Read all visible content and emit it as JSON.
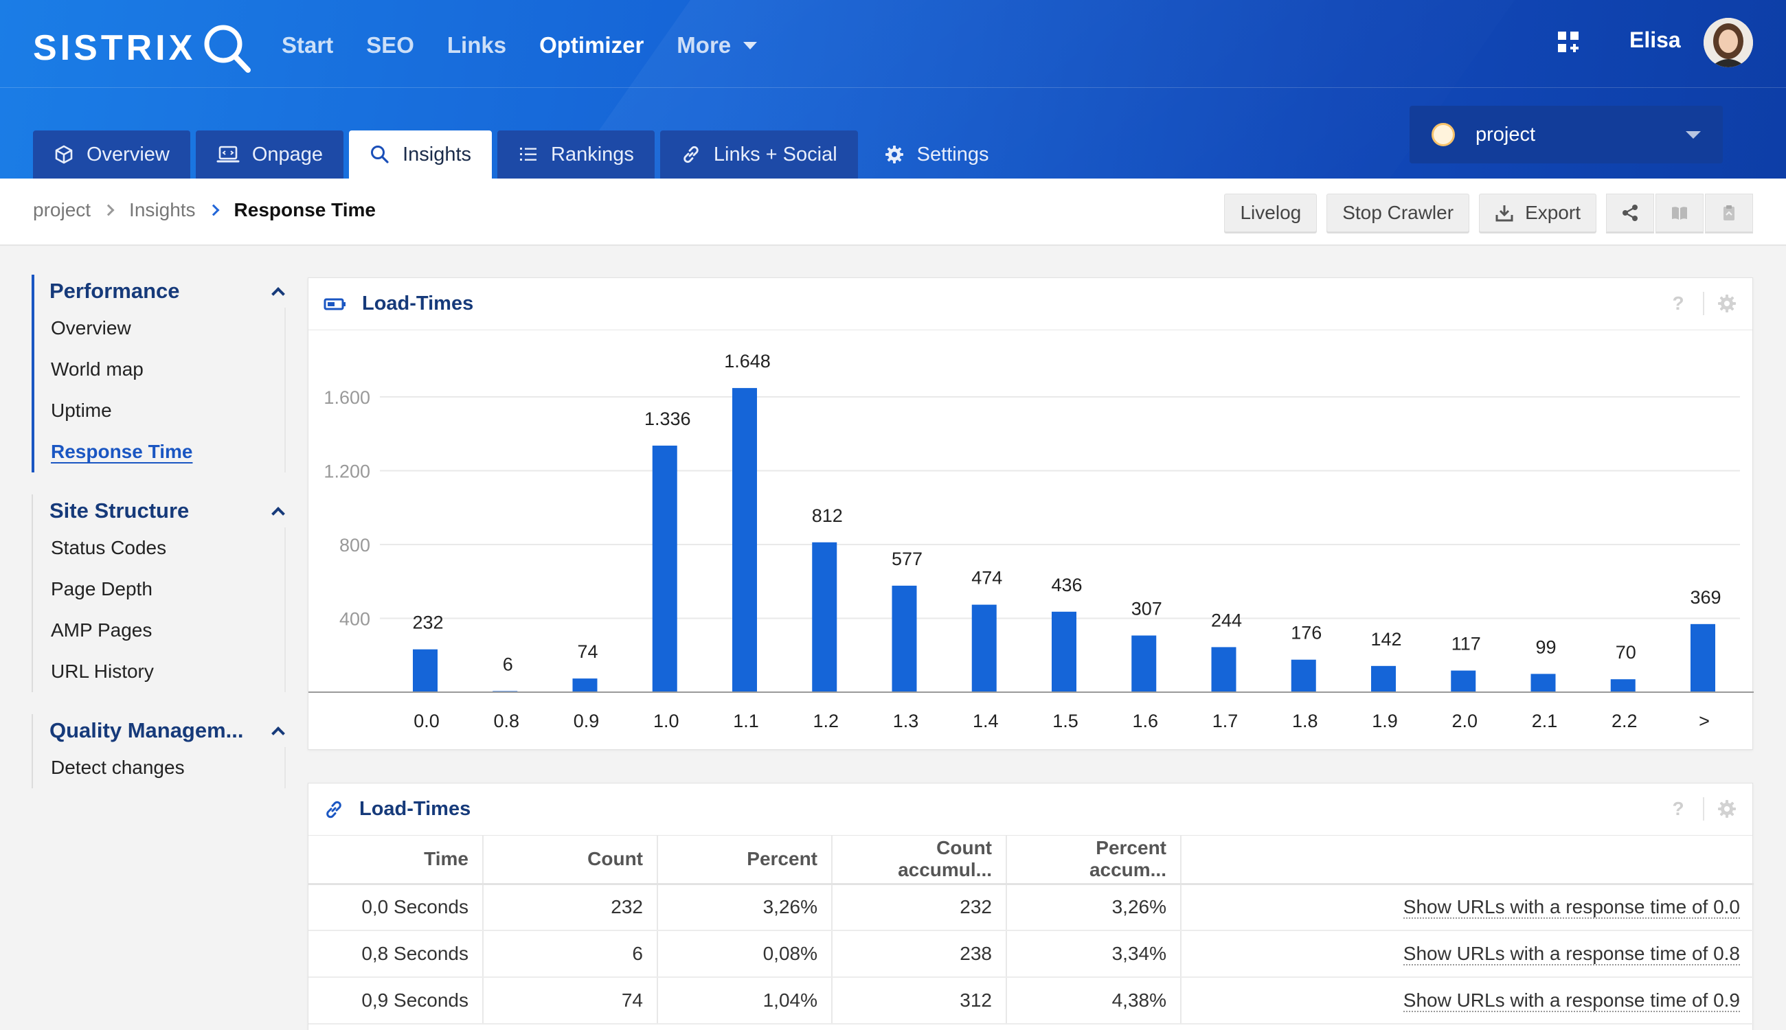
{
  "brand": {
    "logo_text": "SISTRIX"
  },
  "topnav": {
    "items": [
      {
        "label": "Start"
      },
      {
        "label": "SEO"
      },
      {
        "label": "Links"
      },
      {
        "label": "Optimizer",
        "active": true
      },
      {
        "label": "More"
      }
    ]
  },
  "user": {
    "name": "Elisa"
  },
  "tabs": [
    {
      "label": "Overview",
      "icon": "cube-icon"
    },
    {
      "label": "Onpage",
      "icon": "laptop-code-icon"
    },
    {
      "label": "Insights",
      "icon": "search-icon",
      "active": true
    },
    {
      "label": "Rankings",
      "icon": "list-icon"
    },
    {
      "label": "Links + Social",
      "icon": "link-icon"
    },
    {
      "label": "Settings",
      "icon": "gear-icon"
    }
  ],
  "project_select": {
    "value": "project"
  },
  "breadcrumb": {
    "items": [
      "project",
      "Insights"
    ],
    "current": "Response Time"
  },
  "toolbar": {
    "livelog": "Livelog",
    "stop_crawler": "Stop Crawler",
    "export": "Export"
  },
  "sidebar": {
    "sections": [
      {
        "title": "Performance",
        "items": [
          "Overview",
          "World map",
          "Uptime",
          "Response Time"
        ],
        "active_item": "Response Time"
      },
      {
        "title": "Site Structure",
        "items": [
          "Status Codes",
          "Page Depth",
          "AMP Pages",
          "URL History"
        ]
      },
      {
        "title": "Quality Managem...",
        "items": [
          "Detect changes"
        ]
      }
    ]
  },
  "chart_panel": {
    "title": "Load-Times",
    "help": "?"
  },
  "chart_data": {
    "type": "bar",
    "categories": [
      "0.0",
      "0.8",
      "0.9",
      "1.0",
      "1.1",
      "1.2",
      "1.3",
      "1.4",
      "1.5",
      "1.6",
      "1.7",
      "1.8",
      "1.9",
      "2.0",
      "2.1",
      "2.2",
      ">"
    ],
    "values": [
      232,
      6,
      74,
      1336,
      1648,
      812,
      577,
      474,
      436,
      307,
      244,
      176,
      142,
      117,
      99,
      70,
      369
    ],
    "value_labels": [
      "232",
      "6",
      "74",
      "1.336",
      "1.648",
      "812",
      "577",
      "474",
      "436",
      "307",
      "244",
      "176",
      "142",
      "117",
      "99",
      "70",
      "369"
    ],
    "y_ticks": [
      400,
      800,
      1200,
      1600
    ],
    "y_tick_labels": [
      "400",
      "800",
      "1.200",
      "1.600"
    ],
    "ylim": [
      0,
      1600
    ],
    "grid": true,
    "bar_color": "#1565d8"
  },
  "table_panel": {
    "title": "Load-Times",
    "help": "?",
    "columns": [
      "Time",
      "Count",
      "Percent",
      "Count accumul...",
      "Percent accum..."
    ],
    "rows": [
      {
        "time": "0,0 Seconds",
        "count": "232",
        "percent": "3,26%",
        "count_acc": "232",
        "percent_acc": "3,26%",
        "link": "Show URLs with a response time of 0.0"
      },
      {
        "time": "0,8 Seconds",
        "count": "6",
        "percent": "0,08%",
        "count_acc": "238",
        "percent_acc": "3,34%",
        "link": "Show URLs with a response time of 0.8"
      },
      {
        "time": "0,9 Seconds",
        "count": "74",
        "percent": "1,04%",
        "count_acc": "312",
        "percent_acc": "4,38%",
        "link": "Show URLs with a response time of 0.9"
      }
    ]
  }
}
